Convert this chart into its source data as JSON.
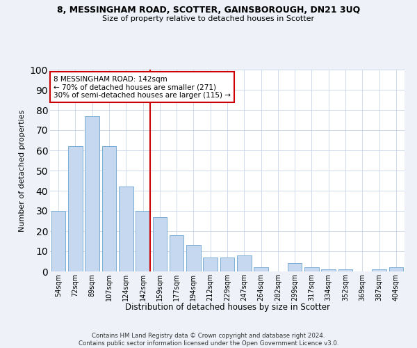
{
  "title1": "8, MESSINGHAM ROAD, SCOTTER, GAINSBOROUGH, DN21 3UQ",
  "title2": "Size of property relative to detached houses in Scotter",
  "xlabel": "Distribution of detached houses by size in Scotter",
  "ylabel": "Number of detached properties",
  "categories": [
    "54sqm",
    "72sqm",
    "89sqm",
    "107sqm",
    "124sqm",
    "142sqm",
    "159sqm",
    "177sqm",
    "194sqm",
    "212sqm",
    "229sqm",
    "247sqm",
    "264sqm",
    "282sqm",
    "299sqm",
    "317sqm",
    "334sqm",
    "352sqm",
    "369sqm",
    "387sqm",
    "404sqm"
  ],
  "values": [
    30,
    62,
    77,
    62,
    42,
    30,
    27,
    18,
    13,
    7,
    7,
    8,
    2,
    0,
    4,
    2,
    1,
    1,
    0,
    1,
    2
  ],
  "bar_color": "#c5d8f0",
  "bar_edge_color": "#7aaed4",
  "highlight_index": 5,
  "highlight_line_color": "#cc0000",
  "ylim": [
    0,
    100
  ],
  "yticks": [
    0,
    10,
    20,
    30,
    40,
    50,
    60,
    70,
    80,
    90,
    100
  ],
  "annotation_box_color": "#cc0000",
  "annotation_line1": "8 MESSINGHAM ROAD: 142sqm",
  "annotation_line2": "← 70% of detached houses are smaller (271)",
  "annotation_line3": "30% of semi-detached houses are larger (115) →",
  "footer1": "Contains HM Land Registry data © Crown copyright and database right 2024.",
  "footer2": "Contains public sector information licensed under the Open Government Licence v3.0.",
  "background_color": "#eef2f8",
  "plot_background": "#ffffff"
}
